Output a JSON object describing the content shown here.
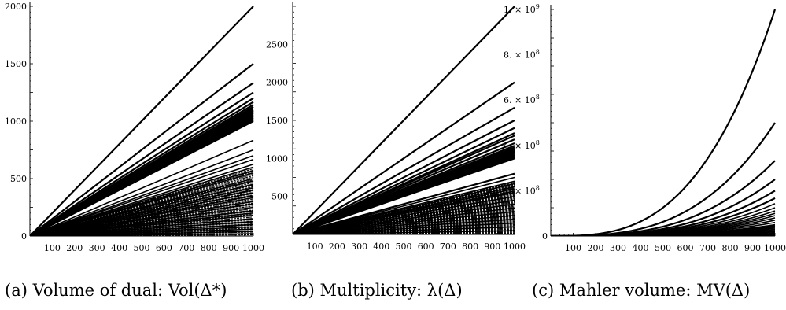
{
  "chart_data": [
    {
      "type": "line",
      "title": "",
      "caption": "(a) Volume of dual: Vol(Δ*)",
      "xlabel": "",
      "ylabel": "",
      "xlim": [
        0,
        1000
      ],
      "ylim": [
        0,
        2000
      ],
      "x_ticks": [
        100,
        200,
        300,
        400,
        500,
        600,
        700,
        800,
        900,
        1000
      ],
      "x_tick_labels": [
        "100",
        "200",
        "300",
        "400",
        "500",
        "600",
        "700",
        "800",
        "900",
        "1000"
      ],
      "y_ticks": [
        0,
        500,
        1000,
        1500,
        2000
      ],
      "y_tick_labels": [
        "0",
        "500",
        "1000",
        "1500",
        "2000"
      ],
      "grid": false,
      "legend": "none",
      "series_note": "many linear series y = k·x",
      "slopes": [
        2.0,
        1.5,
        1.333,
        1.25,
        1.2,
        1.167,
        1.143,
        1.125,
        1.111,
        1.1,
        1.09,
        1.08,
        1.07,
        1.06,
        1.05,
        1.04,
        1.03,
        1.02,
        1.01,
        1.0,
        0.833,
        0.75,
        0.7,
        0.667,
        0.625,
        0.6,
        0.57,
        0.55,
        0.5,
        0.48,
        0.45,
        0.42,
        0.4,
        0.375,
        0.35,
        0.333,
        0.3,
        0.28,
        0.25,
        0.22,
        0.2,
        0.18,
        0.15,
        0.125,
        0.1,
        0.08,
        0.06,
        0.04,
        0.02
      ]
    },
    {
      "type": "line",
      "title": "",
      "caption": "(b) Multiplicity: λ(Δ)",
      "xlabel": "",
      "ylabel": "",
      "xlim": [
        0,
        1000
      ],
      "ylim": [
        0,
        3000
      ],
      "x_ticks": [
        100,
        200,
        300,
        400,
        500,
        600,
        700,
        800,
        900,
        1000
      ],
      "x_tick_labels": [
        "100",
        "200",
        "300",
        "400",
        "500",
        "600",
        "700",
        "800",
        "900",
        "1000"
      ],
      "y_ticks": [
        500,
        1000,
        1500,
        2000,
        2500
      ],
      "y_tick_labels": [
        "500",
        "1000",
        "1500",
        "2000",
        "2500"
      ],
      "grid": false,
      "legend": "none",
      "series_note": "many linear series y = k·x",
      "slopes": [
        3.0,
        2.0,
        1.667,
        1.5,
        1.4,
        1.333,
        1.3,
        1.25,
        1.2,
        1.167,
        1.143,
        1.125,
        1.111,
        1.1,
        1.08,
        1.06,
        1.04,
        1.02,
        1.0,
        0.8,
        0.75,
        0.7,
        0.667,
        0.625,
        0.6,
        0.57,
        0.55,
        0.5,
        0.45,
        0.4,
        0.35,
        0.3,
        0.25,
        0.2,
        0.15,
        0.1,
        0.05
      ]
    },
    {
      "type": "line",
      "title": "",
      "caption": "(c) Mahler volume: MV(Δ)",
      "xlabel": "",
      "ylabel": "",
      "xlim": [
        0,
        1000
      ],
      "ylim": [
        0,
        1000000000
      ],
      "x_ticks": [
        100,
        200,
        300,
        400,
        500,
        600,
        700,
        800,
        900,
        1000
      ],
      "x_tick_labels": [
        "100",
        "200",
        "300",
        "400",
        "500",
        "600",
        "700",
        "800",
        "900",
        "1000"
      ],
      "y_ticks": [
        0,
        200000000,
        400000000,
        600000000,
        800000000,
        1000000000
      ],
      "y_tick_labels": [
        {
          "mantissa": "0",
          "exponent": ""
        },
        {
          "mantissa": "2. × 10",
          "exponent": "8"
        },
        {
          "mantissa": "4. × 10",
          "exponent": "8"
        },
        {
          "mantissa": "6. × 10",
          "exponent": "8"
        },
        {
          "mantissa": "8. × 10",
          "exponent": "8"
        },
        {
          "mantissa": "1. × 10",
          "exponent": "9"
        }
      ],
      "grid": false,
      "legend": "none",
      "series_note": "many cubic series y = c·x^3",
      "coefficients": [
        1.0,
        0.5,
        0.333,
        0.25,
        0.2,
        0.167,
        0.143,
        0.125,
        0.111,
        0.1,
        0.09,
        0.08,
        0.07,
        0.06,
        0.05,
        0.045,
        0.04,
        0.035,
        0.03,
        0.025,
        0.02,
        0.015,
        0.01,
        0.007,
        0.005,
        0.003,
        0.001
      ]
    }
  ]
}
